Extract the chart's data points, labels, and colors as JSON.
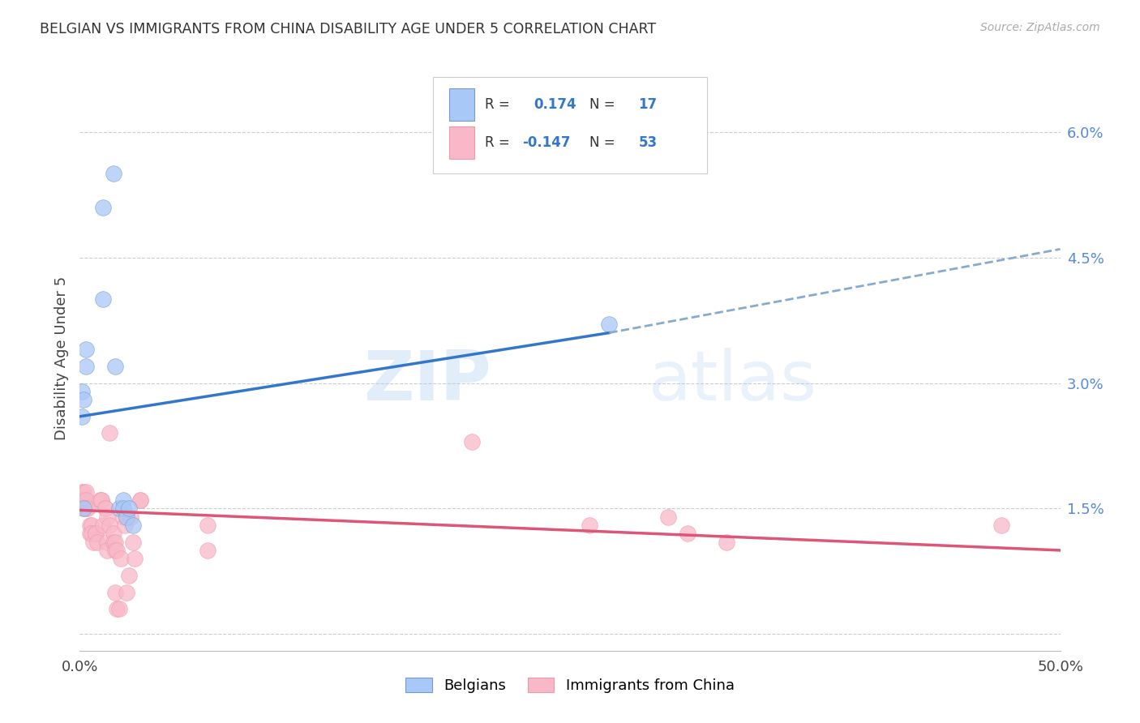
{
  "title": "BELGIAN VS IMMIGRANTS FROM CHINA DISABILITY AGE UNDER 5 CORRELATION CHART",
  "source": "Source: ZipAtlas.com",
  "ylabel": "Disability Age Under 5",
  "xlim": [
    0.0,
    0.5
  ],
  "ylim": [
    -0.002,
    0.068
  ],
  "belgian_color": "#a8c8f8",
  "china_color": "#f8b8c8",
  "belgian_line_color": "#3377cc",
  "china_line_color": "#dd5577",
  "trendline_extend_color": "#88aacc",
  "watermark_zip": "ZIP",
  "watermark_atlas": "atlas",
  "background_color": "#ffffff",
  "grid_color": "#cccccc",
  "belgian_points": [
    [
      0.001,
      0.026
    ],
    [
      0.012,
      0.051
    ],
    [
      0.017,
      0.055
    ],
    [
      0.012,
      0.04
    ],
    [
      0.003,
      0.034
    ],
    [
      0.003,
      0.032
    ],
    [
      0.001,
      0.029
    ],
    [
      0.002,
      0.028
    ],
    [
      0.002,
      0.015
    ],
    [
      0.018,
      0.032
    ],
    [
      0.02,
      0.015
    ],
    [
      0.022,
      0.016
    ],
    [
      0.022,
      0.015
    ],
    [
      0.024,
      0.014
    ],
    [
      0.025,
      0.015
    ],
    [
      0.027,
      0.013
    ],
    [
      0.27,
      0.037
    ]
  ],
  "china_points": [
    [
      0.001,
      0.017
    ],
    [
      0.001,
      0.016
    ],
    [
      0.002,
      0.017
    ],
    [
      0.002,
      0.016
    ],
    [
      0.002,
      0.015
    ],
    [
      0.003,
      0.017
    ],
    [
      0.003,
      0.016
    ],
    [
      0.003,
      0.015
    ],
    [
      0.004,
      0.015
    ],
    [
      0.005,
      0.013
    ],
    [
      0.005,
      0.012
    ],
    [
      0.006,
      0.013
    ],
    [
      0.006,
      0.012
    ],
    [
      0.007,
      0.011
    ],
    [
      0.008,
      0.012
    ],
    [
      0.008,
      0.012
    ],
    [
      0.009,
      0.011
    ],
    [
      0.01,
      0.016
    ],
    [
      0.011,
      0.016
    ],
    [
      0.011,
      0.016
    ],
    [
      0.012,
      0.013
    ],
    [
      0.013,
      0.015
    ],
    [
      0.013,
      0.015
    ],
    [
      0.014,
      0.014
    ],
    [
      0.014,
      0.011
    ],
    [
      0.014,
      0.01
    ],
    [
      0.015,
      0.024
    ],
    [
      0.015,
      0.013
    ],
    [
      0.017,
      0.012
    ],
    [
      0.017,
      0.011
    ],
    [
      0.018,
      0.011
    ],
    [
      0.018,
      0.01
    ],
    [
      0.018,
      0.005
    ],
    [
      0.019,
      0.01
    ],
    [
      0.019,
      0.003
    ],
    [
      0.02,
      0.003
    ],
    [
      0.021,
      0.009
    ],
    [
      0.022,
      0.014
    ],
    [
      0.023,
      0.013
    ],
    [
      0.024,
      0.005
    ],
    [
      0.025,
      0.007
    ],
    [
      0.026,
      0.014
    ],
    [
      0.027,
      0.011
    ],
    [
      0.028,
      0.009
    ],
    [
      0.031,
      0.016
    ],
    [
      0.031,
      0.016
    ],
    [
      0.065,
      0.013
    ],
    [
      0.065,
      0.01
    ],
    [
      0.2,
      0.023
    ],
    [
      0.26,
      0.013
    ],
    [
      0.3,
      0.014
    ],
    [
      0.31,
      0.012
    ],
    [
      0.33,
      0.011
    ],
    [
      0.47,
      0.013
    ]
  ],
  "belgian_trendline_solid": [
    [
      0.0,
      0.026
    ],
    [
      0.27,
      0.036
    ]
  ],
  "belgian_trendline_dash": [
    [
      0.27,
      0.036
    ],
    [
      0.5,
      0.046
    ]
  ],
  "china_trendline": [
    [
      0.0,
      0.0148
    ],
    [
      0.5,
      0.01
    ]
  ]
}
